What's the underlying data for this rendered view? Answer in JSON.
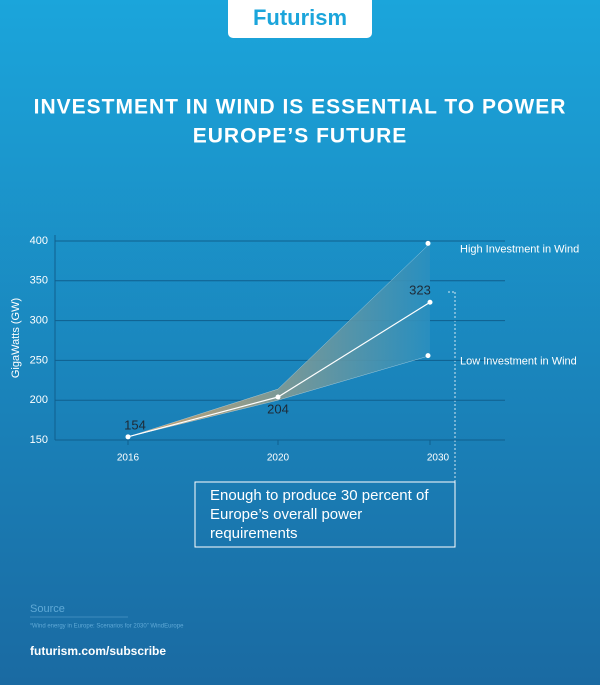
{
  "header": {
    "logo": "Futurism",
    "title": [
      "INVESTMENT IN WIND IS ESSENTIAL TO POWER",
      "EUROPE’S FUTURE"
    ]
  },
  "chart_data": {
    "type": "line",
    "y_label": "GigaWatts (GW)",
    "categories": [
      "2016",
      "2020",
      "2030"
    ],
    "values": [
      154,
      204,
      323
    ],
    "color": "#ffffff",
    "series": [
      {
        "name": "High Investment in Wind",
        "color": "#ffffff",
        "values": [
          154,
          214,
          397
        ]
      },
      {
        "name": "Low Investment in Wind",
        "color": "#ffffff",
        "values": [
          154,
          200,
          256
        ]
      }
    ],
    "band_colors": [
      "#e2a765",
      "#2a8fbf"
    ],
    "ylim": [
      150,
      400
    ],
    "yticks": [
      150,
      200,
      250,
      300,
      350,
      400
    ],
    "grid": true,
    "annotation": [
      "Enough to produce 30 percent of",
      "Europe’s overall power",
      "requirements"
    ]
  },
  "footer": {
    "source_title": "Source",
    "source": "“Wind energy in Europe: Scenarios for 2030” WindEurope",
    "link": "futurism.com/subscribe"
  }
}
